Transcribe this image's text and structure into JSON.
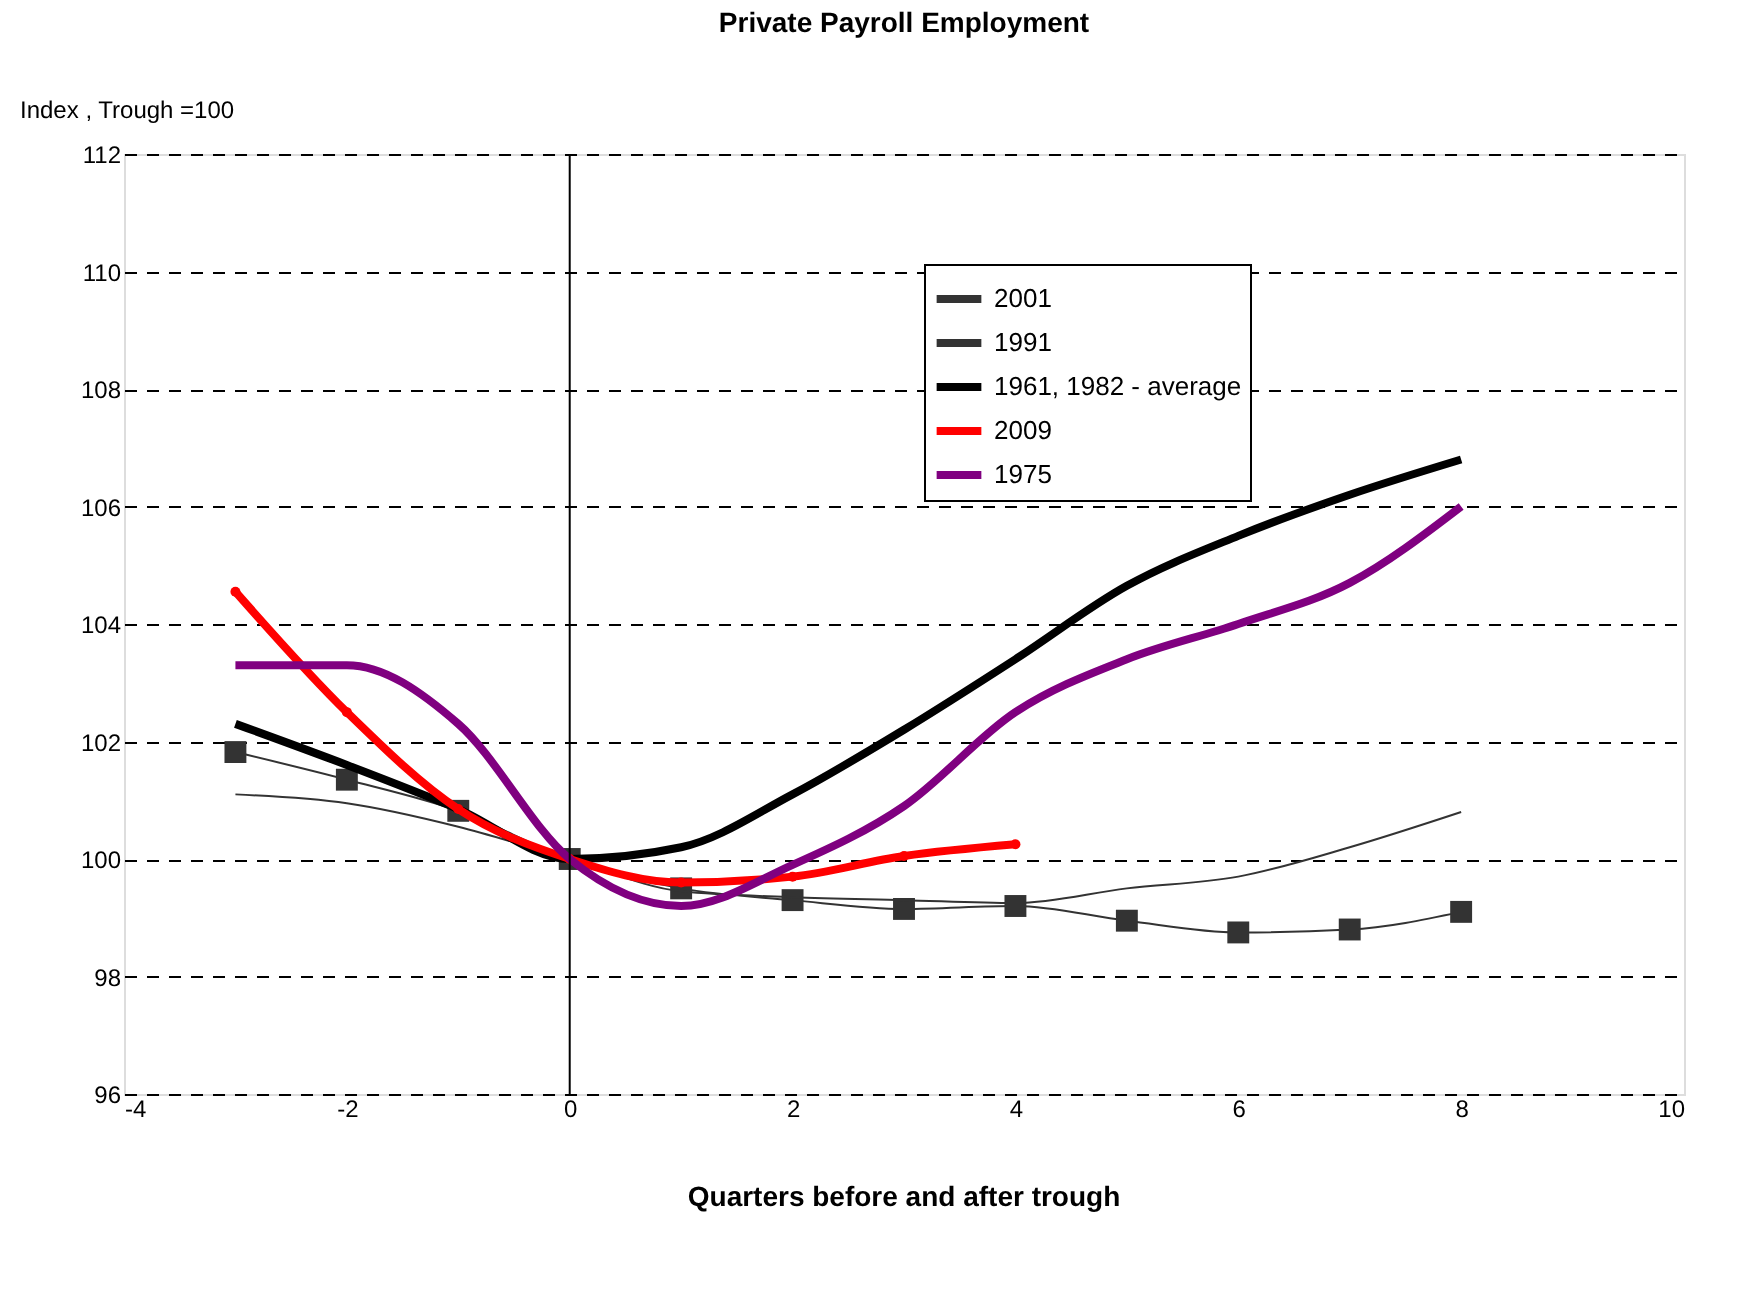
{
  "chart_data": {
    "type": "line",
    "title": "Private Payroll Employment",
    "xlabel": "Quarters before and after trough",
    "ylabel": "Index , Trough =100",
    "x": [
      -3,
      -2,
      -1,
      0,
      1,
      2,
      3,
      4,
      5,
      6,
      7,
      8
    ],
    "series": [
      {
        "name": "2001",
        "color": "#333333",
        "marker": "square",
        "values": [
          101.82,
          101.35,
          100.82,
          100,
          99.5,
          99.3,
          99.15,
          99.2,
          98.95,
          98.75,
          98.8,
          99.1
        ]
      },
      {
        "name": "1991",
        "color": "#333333",
        "marker": "none",
        "values": [
          101.1,
          100.95,
          100.55,
          100,
          99.45,
          99.35,
          99.3,
          99.25,
          99.5,
          99.7,
          100.2,
          100.8
        ]
      },
      {
        "name": "1961, 1982 - average",
        "color": "#000000",
        "marker": "none",
        "values": [
          102.3,
          101.6,
          100.85,
          100,
          100.2,
          101.1,
          102.2,
          103.4,
          104.65,
          105.5,
          106.2,
          106.8
        ]
      },
      {
        "name": "2009",
        "color": "#ff0000",
        "marker": "circle",
        "values": [
          104.55,
          102.5,
          100.85,
          100,
          99.6,
          99.7,
          100.05,
          100.25,
          null,
          null,
          null,
          null
        ]
      },
      {
        "name": "1975",
        "color": "#800080",
        "marker": "none",
        "values": [
          103.3,
          103.3,
          102.3,
          100,
          99.2,
          99.9,
          100.9,
          102.5,
          103.4,
          104.0,
          104.7,
          106.0
        ]
      }
    ],
    "xlim": [
      -4,
      10
    ],
    "xticks": [
      -4,
      -2,
      0,
      2,
      4,
      6,
      8,
      10
    ],
    "ylim": [
      96,
      112
    ],
    "yticks": [
      96,
      98,
      100,
      102,
      104,
      106,
      108,
      110,
      112
    ],
    "ref_lines": [
      {
        "axis": "x",
        "value": 0,
        "color": "#000000"
      }
    ],
    "grid": "y",
    "line_style": "solid",
    "legend": "top right"
  }
}
